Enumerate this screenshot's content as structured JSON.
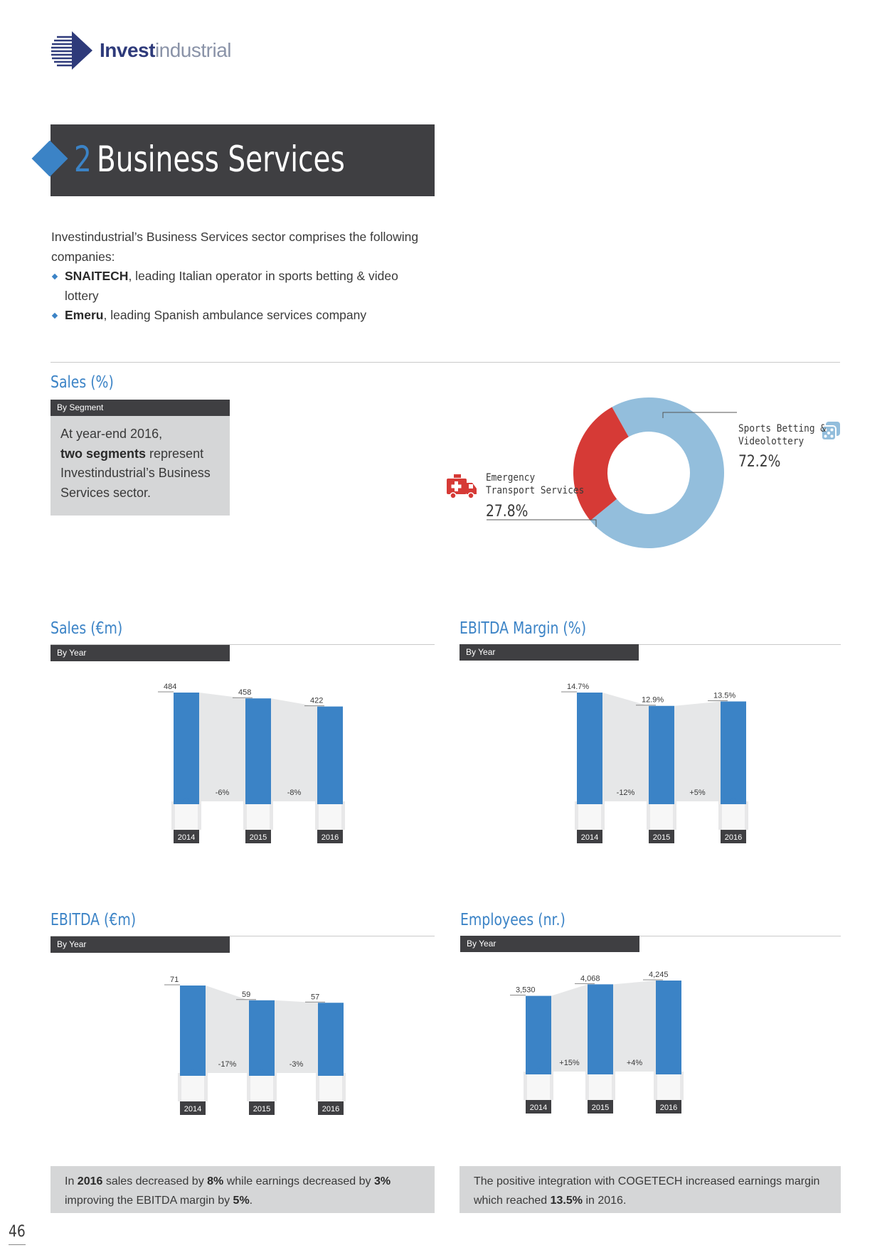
{
  "header": {
    "logo_bold": "Invest",
    "logo_light": "industrial"
  },
  "section": {
    "number": "2",
    "title": "Business Services"
  },
  "intro": {
    "lead": "Investindustrial’s Business Services sector comprises the following companies:",
    "items": [
      {
        "name": "SNAITECH",
        "desc": ", leading Italian operator in sports betting & video lottery"
      },
      {
        "name": "Emeru",
        "desc": ", leading Spanish ambulance services company"
      }
    ]
  },
  "sales_pct": {
    "heading": "Sales (%)",
    "tag": "By Segment",
    "text_1": "At year-end 2016,",
    "text_bold": "two segments",
    "text_2": " represent Investindustrial’s Business Services sector."
  },
  "sales_eur": {
    "heading": "Sales (€m)",
    "tag": "By Year"
  },
  "ebitda_margin": {
    "heading": "EBITDA Margin (%)",
    "tag": "By Year"
  },
  "ebitda_eur": {
    "heading": "EBITDA (€m)",
    "tag": "By Year"
  },
  "employees": {
    "heading": "Employees (nr.)",
    "tag": "By Year"
  },
  "notes": {
    "left": {
      "p1": "In ",
      "b1": "2016",
      "p2": " sales decreased by ",
      "b2": "8%",
      "p3": " while earnings decreased by ",
      "b3": "3%",
      "p4": " improving the EBITDA margin by ",
      "b4": "5%",
      "p5": "."
    },
    "right": {
      "p1": "The positive integration with COGETECH increased earnings margin which reached ",
      "b1": "13.5%",
      "p2": " in 2016."
    }
  },
  "page_number": "46",
  "colors": {
    "accent": "#3b83c6",
    "dark": "#3f3f42",
    "red": "#d63a36",
    "light_blue": "#93bedc"
  },
  "chart_data": [
    {
      "type": "pie",
      "subtype": "donut",
      "categories": [
        "Sports Betting & Videolottery",
        "Emergency Transport Services"
      ],
      "values": [
        72.2,
        27.8
      ],
      "value_labels": [
        "72.2%",
        "27.8%"
      ],
      "label_lines": [
        [
          "Sports Betting &",
          "Videolottery"
        ],
        [
          "Emergency",
          "Transport Services"
        ]
      ],
      "colors": [
        "#93bedc",
        "#d63a36"
      ],
      "icons": [
        "dice-icon",
        "ambulance-icon"
      ]
    },
    {
      "type": "bar",
      "categories": [
        "2014",
        "2015",
        "2016"
      ],
      "values": [
        484,
        458,
        422
      ],
      "value_labels": [
        "484",
        "458",
        "422"
      ],
      "changes": [
        "-6%",
        "-8%"
      ],
      "ylim": [
        0,
        484
      ]
    },
    {
      "type": "bar",
      "categories": [
        "2014",
        "2015",
        "2016"
      ],
      "values": [
        14.7,
        12.9,
        13.5
      ],
      "value_labels": [
        "14.7%",
        "12.9%",
        "13.5%"
      ],
      "changes": [
        "-12%",
        "+5%"
      ],
      "ylim": [
        0,
        14.7
      ]
    },
    {
      "type": "bar",
      "categories": [
        "2014",
        "2015",
        "2016"
      ],
      "values": [
        71,
        59,
        57
      ],
      "value_labels": [
        "71",
        "59",
        "57"
      ],
      "changes": [
        "-17%",
        "-3%"
      ],
      "ylim": [
        0,
        71
      ]
    },
    {
      "type": "bar",
      "categories": [
        "2014",
        "2015",
        "2016"
      ],
      "values": [
        3530,
        4068,
        4245
      ],
      "value_labels": [
        "3,530",
        "4,068",
        "4,245"
      ],
      "changes": [
        "+15%",
        "+4%"
      ],
      "ylim": [
        0,
        4245
      ]
    }
  ]
}
